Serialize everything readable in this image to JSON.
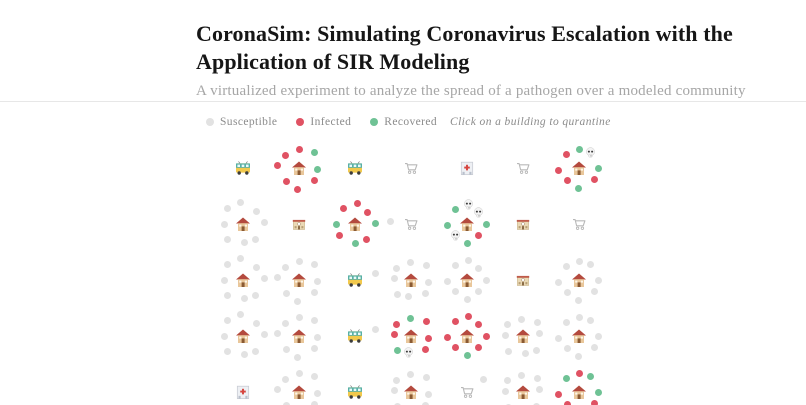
{
  "header": {
    "title": "CoronaSim: Simulating Coronavirus Escalation with the Application of SIR Modeling",
    "subtitle": "A virtualized experiment to analyze the spread of a pathogen over a modeled community"
  },
  "legend": {
    "items": [
      {
        "state": "S",
        "label": "Susceptible"
      },
      {
        "state": "I",
        "label": "Infected"
      },
      {
        "state": "R",
        "label": "Recovered"
      }
    ],
    "note": "Click on a building to qurantine"
  },
  "colors": {
    "susceptible": "#e2e2e2",
    "infected": "#e05263",
    "recovered": "#6fc295",
    "deceased_skull": "#f4f4f4"
  },
  "grid": {
    "columns": 7,
    "rows": 5,
    "cells": [
      {
        "building": "trolleybus"
      },
      {
        "building": "house",
        "people": [
          "I",
          "R",
          "R",
          "I",
          "I",
          "I",
          "I",
          "I"
        ]
      },
      {
        "building": "trolleybus"
      },
      {
        "building": "cart"
      },
      {
        "building": "hospital"
      },
      {
        "building": "cart"
      },
      {
        "building": "house",
        "people": [
          "R",
          "D",
          "R",
          "I",
          "R",
          "I",
          "I",
          "I"
        ]
      },
      {
        "building": "house",
        "people": [
          "S",
          "S",
          "S",
          "S",
          "S",
          "S",
          "S",
          "S"
        ]
      },
      {
        "building": "school"
      },
      {
        "building": "house",
        "people": [
          "I",
          "I",
          "R",
          "I",
          "R",
          "I",
          "R",
          "I"
        ]
      },
      {
        "building": "cart",
        "stray": {
          "state": "S",
          "pos": "left"
        }
      },
      {
        "building": "house",
        "people": [
          "D",
          "D",
          "R",
          "I",
          "R",
          "D",
          "R",
          "R"
        ]
      },
      {
        "building": "school"
      },
      {
        "building": "cart"
      },
      {
        "building": "house",
        "people": [
          "S",
          "S",
          "S",
          "S",
          "S",
          "S",
          "S",
          "S"
        ]
      },
      {
        "building": "house",
        "people": [
          "S",
          "S",
          "S",
          "S",
          "S",
          "S",
          "S",
          "S"
        ]
      },
      {
        "building": "trolleybus",
        "stray": {
          "state": "S",
          "pos": "right"
        }
      },
      {
        "building": "house",
        "people": [
          "S",
          "S",
          "S",
          "S",
          "S",
          "S",
          "S",
          "S"
        ]
      },
      {
        "building": "house",
        "people": [
          "S",
          "S",
          "S",
          "S",
          "S",
          "S",
          "S",
          "S"
        ]
      },
      {
        "building": "school"
      },
      {
        "building": "house",
        "people": [
          "S",
          "S",
          "S",
          "S",
          "S",
          "S",
          "S",
          "S"
        ]
      },
      {
        "building": "house",
        "people": [
          "S",
          "S",
          "S",
          "S",
          "S",
          "S",
          "S",
          "S"
        ]
      },
      {
        "building": "house",
        "people": [
          "S",
          "S",
          "S",
          "S",
          "S",
          "S",
          "S",
          "S"
        ]
      },
      {
        "building": "trolleybus",
        "stray": {
          "state": "S",
          "pos": "right"
        }
      },
      {
        "building": "house",
        "people": [
          "R",
          "I",
          "I",
          "I",
          "D",
          "R",
          "I",
          "I"
        ]
      },
      {
        "building": "house",
        "people": [
          "I",
          "I",
          "I",
          "I",
          "R",
          "I",
          "I",
          "I"
        ]
      },
      {
        "building": "house",
        "people": [
          "S",
          "S",
          "S",
          "S",
          "S",
          "S",
          "S",
          "S"
        ]
      },
      {
        "building": "house",
        "people": [
          "S",
          "S",
          "S",
          "S",
          "S",
          "S",
          "S",
          "S"
        ]
      },
      {
        "building": "hospital"
      },
      {
        "building": "house",
        "people": [
          "S",
          "S",
          "S",
          "S",
          "S",
          "S",
          "S",
          "S"
        ]
      },
      {
        "building": "trolleybus"
      },
      {
        "building": "house",
        "people": [
          "S",
          "S",
          "S",
          "S",
          "S",
          "S",
          "S",
          "S"
        ]
      },
      {
        "building": "cart",
        "stray": {
          "state": "S",
          "pos": "top-right"
        }
      },
      {
        "building": "house",
        "people": [
          "S",
          "S",
          "S",
          "S",
          "S",
          "S",
          "S",
          "S"
        ]
      },
      {
        "building": "house",
        "people": [
          "I",
          "R",
          "R",
          "I",
          "I",
          "I",
          "I",
          "R"
        ]
      }
    ]
  }
}
